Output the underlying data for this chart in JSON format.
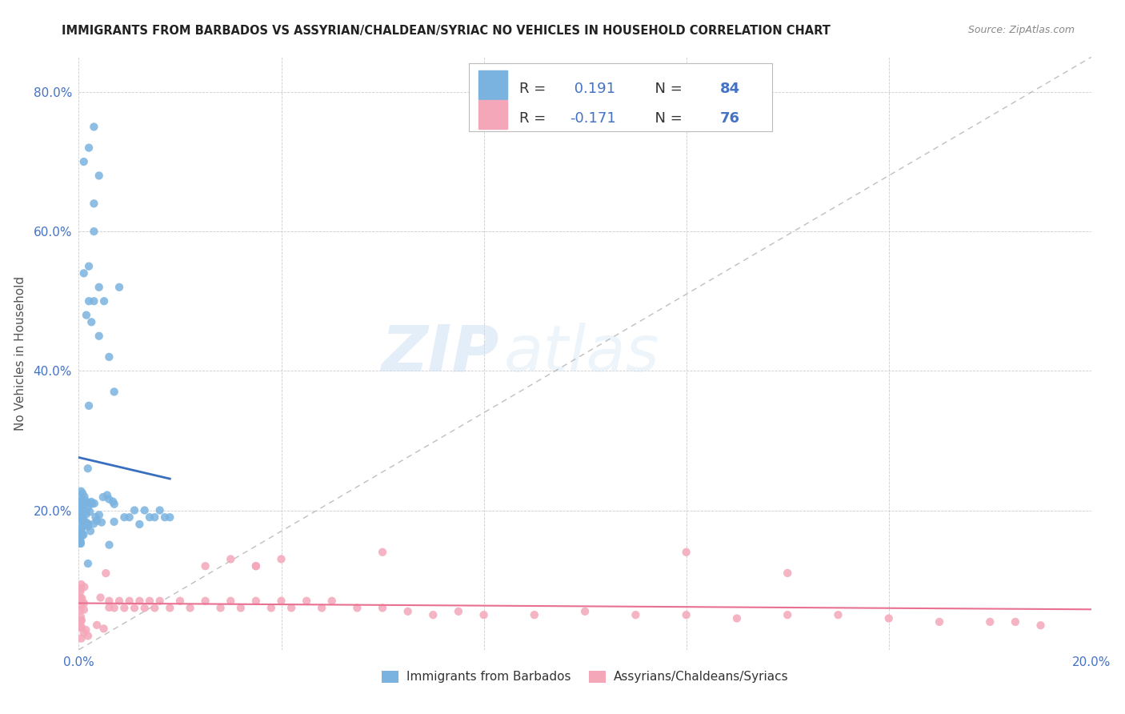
{
  "title": "IMMIGRANTS FROM BARBADOS VS ASSYRIAN/CHALDEAN/SYRIAC NO VEHICLES IN HOUSEHOLD CORRELATION CHART",
  "source": "Source: ZipAtlas.com",
  "ylabel": "No Vehicles in Household",
  "xlim": [
    0.0,
    0.2
  ],
  "ylim": [
    0.0,
    0.85
  ],
  "xticks": [
    0.0,
    0.04,
    0.08,
    0.12,
    0.16,
    0.2
  ],
  "xticklabels": [
    "0.0%",
    "",
    "",
    "",
    "",
    "20.0%"
  ],
  "yticks": [
    0.0,
    0.2,
    0.4,
    0.6,
    0.8
  ],
  "yticklabels": [
    "",
    "20.0%",
    "40.0%",
    "60.0%",
    "80.0%"
  ],
  "blue_R": 0.191,
  "blue_N": 84,
  "pink_R": -0.171,
  "pink_N": 76,
  "blue_color": "#7ab3e0",
  "pink_color": "#f4a7b9",
  "blue_line_color": "#3a6fbf",
  "pink_line_color": "#e87090",
  "grid_color": "#cccccc",
  "background_color": "#ffffff",
  "watermark_zip": "ZIP",
  "watermark_atlas": "atlas",
  "tick_color": "#4472c4",
  "ylabel_color": "#555555",
  "title_color": "#222222",
  "source_color": "#888888"
}
